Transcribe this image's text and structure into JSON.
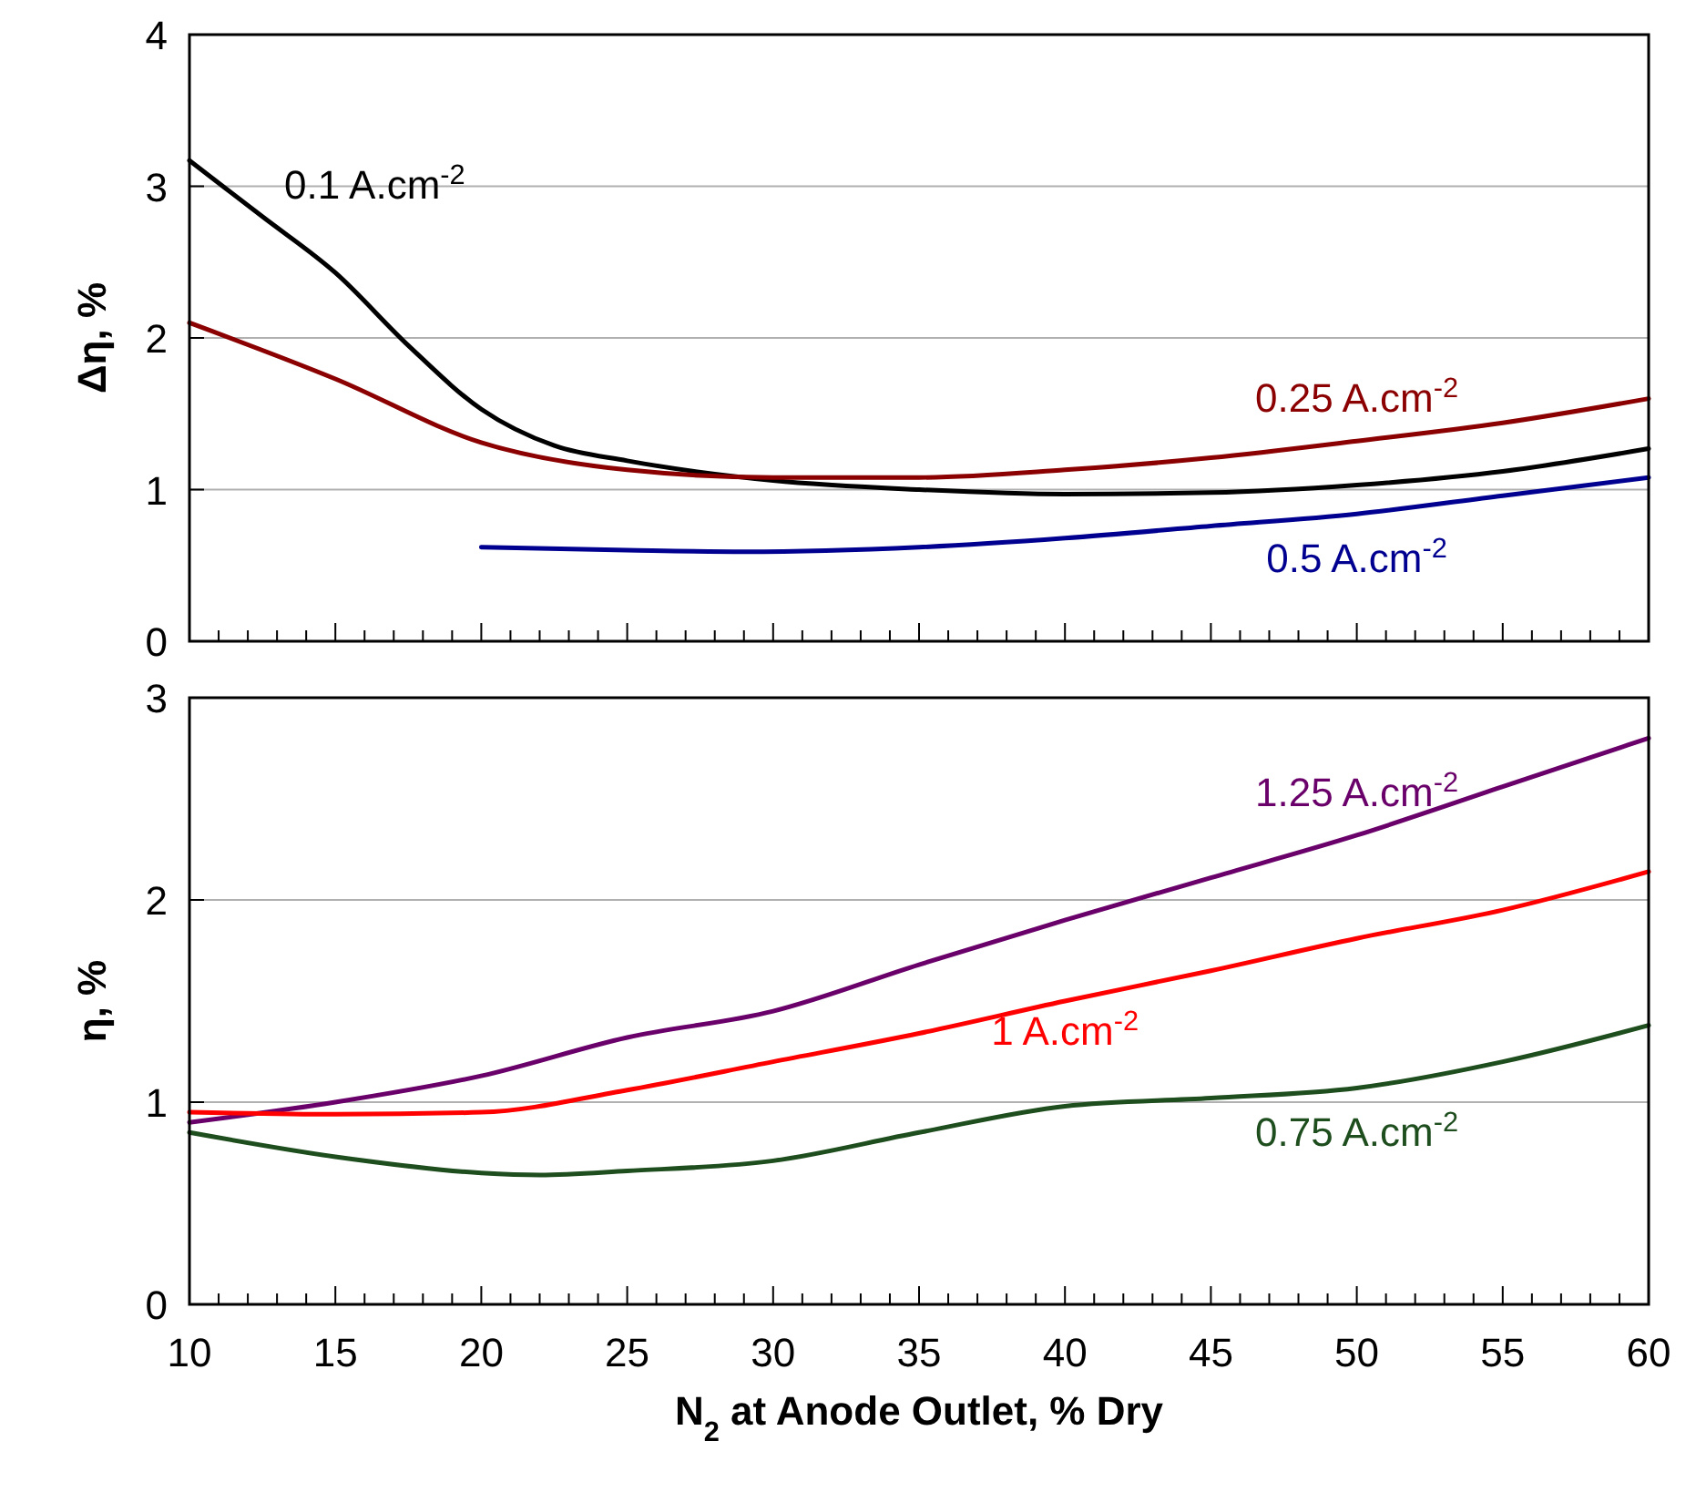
{
  "chart_data": [
    {
      "type": "line",
      "ylabel": "Δη, %",
      "xlim": [
        10,
        60
      ],
      "ylim": [
        0,
        4
      ],
      "yticks": [
        0,
        1,
        2,
        3,
        4
      ],
      "xticks": [
        {
          "value": 10,
          "label": null
        },
        {
          "value": 11,
          "label": null
        },
        {
          "value": 12,
          "label": null
        },
        {
          "value": 13,
          "label": null
        },
        {
          "value": 14,
          "label": null
        },
        {
          "value": 15,
          "label": null
        },
        {
          "value": 16,
          "label": null
        },
        {
          "value": 17,
          "label": null
        },
        {
          "value": 18,
          "label": null
        },
        {
          "value": 19,
          "label": null
        },
        {
          "value": 20,
          "label": null
        },
        {
          "value": 21,
          "label": null
        },
        {
          "value": 22,
          "label": null
        },
        {
          "value": 23,
          "label": null
        },
        {
          "value": 24,
          "label": null
        },
        {
          "value": 25,
          "label": null
        },
        {
          "value": 26,
          "label": null
        },
        {
          "value": 27,
          "label": null
        },
        {
          "value": 28,
          "label": null
        },
        {
          "value": 29,
          "label": null
        },
        {
          "value": 30,
          "label": null
        },
        {
          "value": 31,
          "label": null
        },
        {
          "value": 32,
          "label": null
        },
        {
          "value": 33,
          "label": null
        },
        {
          "value": 34,
          "label": null
        },
        {
          "value": 35,
          "label": null
        },
        {
          "value": 36,
          "label": null
        },
        {
          "value": 37,
          "label": null
        },
        {
          "value": 38,
          "label": null
        },
        {
          "value": 39,
          "label": null
        },
        {
          "value": 40,
          "label": null
        },
        {
          "value": 41,
          "label": null
        },
        {
          "value": 42,
          "label": null
        },
        {
          "value": 43,
          "label": null
        },
        {
          "value": 44,
          "label": null
        },
        {
          "value": 45,
          "label": null
        },
        {
          "value": 46,
          "label": null
        },
        {
          "value": 47,
          "label": null
        },
        {
          "value": 48,
          "label": null
        },
        {
          "value": 49,
          "label": null
        },
        {
          "value": 50,
          "label": null
        },
        {
          "value": 51,
          "label": null
        },
        {
          "value": 52,
          "label": null
        },
        {
          "value": 53,
          "label": null
        },
        {
          "value": 54,
          "label": null
        },
        {
          "value": 55,
          "label": null
        },
        {
          "value": 56,
          "label": null
        },
        {
          "value": 57,
          "label": null
        },
        {
          "value": 58,
          "label": null
        },
        {
          "value": 59,
          "label": null
        },
        {
          "value": 60,
          "label": null
        }
      ],
      "grid": "y",
      "tick_labels": "y",
      "marker": "none",
      "line_style": "solid",
      "series": [
        {
          "name": "0.1 A.cm$^{-2}$",
          "color": "#000000",
          "x": [
            10,
            12.5,
            15,
            17.5,
            20,
            22.5,
            25,
            30,
            35,
            40,
            45,
            50,
            55,
            60
          ],
          "values": [
            3.17,
            2.8,
            2.43,
            1.95,
            1.53,
            1.29,
            1.19,
            1.06,
            1.0,
            0.97,
            0.98,
            1.03,
            1.12,
            1.27
          ]
        },
        {
          "name": "0.25 A.cm$^{-2}$",
          "color": "#8b0000",
          "x": [
            10,
            15,
            20,
            25,
            30,
            35,
            40,
            45,
            50,
            55,
            60
          ],
          "values": [
            2.1,
            1.73,
            1.31,
            1.13,
            1.08,
            1.08,
            1.13,
            1.21,
            1.32,
            1.44,
            1.6
          ]
        },
        {
          "name": "0.5 A.cm$^{-2}$",
          "color": "#000090",
          "x": [
            20,
            25,
            29,
            35,
            40,
            45,
            50,
            55,
            60
          ],
          "values": [
            0.62,
            0.6,
            0.59,
            0.62,
            0.68,
            0.76,
            0.84,
            0.96,
            1.08
          ]
        }
      ]
    },
    {
      "type": "line",
      "ylabel": "η, %",
      "xlabel": "N$_{2}$ at Anode Outlet, % Dry",
      "xlim": [
        10,
        60
      ],
      "ylim": [
        0,
        3
      ],
      "yticks": [
        0,
        1,
        2,
        3
      ],
      "xticks": [
        10,
        {
          "value": 11,
          "label": null
        },
        {
          "value": 12,
          "label": null
        },
        {
          "value": 13,
          "label": null
        },
        {
          "value": 14,
          "label": null
        },
        15,
        {
          "value": 16,
          "label": null
        },
        {
          "value": 17,
          "label": null
        },
        {
          "value": 18,
          "label": null
        },
        {
          "value": 19,
          "label": null
        },
        20,
        {
          "value": 21,
          "label": null
        },
        {
          "value": 22,
          "label": null
        },
        {
          "value": 23,
          "label": null
        },
        {
          "value": 24,
          "label": null
        },
        25,
        {
          "value": 26,
          "label": null
        },
        {
          "value": 27,
          "label": null
        },
        {
          "value": 28,
          "label": null
        },
        {
          "value": 29,
          "label": null
        },
        30,
        {
          "value": 31,
          "label": null
        },
        {
          "value": 32,
          "label": null
        },
        {
          "value": 33,
          "label": null
        },
        {
          "value": 34,
          "label": null
        },
        35,
        {
          "value": 36,
          "label": null
        },
        {
          "value": 37,
          "label": null
        },
        {
          "value": 38,
          "label": null
        },
        {
          "value": 39,
          "label": null
        },
        40,
        {
          "value": 41,
          "label": null
        },
        {
          "value": 42,
          "label": null
        },
        {
          "value": 43,
          "label": null
        },
        {
          "value": 44,
          "label": null
        },
        45,
        {
          "value": 46,
          "label": null
        },
        {
          "value": 47,
          "label": null
        },
        {
          "value": 48,
          "label": null
        },
        {
          "value": 49,
          "label": null
        },
        50,
        {
          "value": 51,
          "label": null
        },
        {
          "value": 52,
          "label": null
        },
        {
          "value": 53,
          "label": null
        },
        {
          "value": 54,
          "label": null
        },
        55,
        {
          "value": 56,
          "label": null
        },
        {
          "value": 57,
          "label": null
        },
        {
          "value": 58,
          "label": null
        },
        {
          "value": 59,
          "label": null
        },
        60
      ],
      "grid": "y",
      "marker": "none",
      "line_style": "solid",
      "series": [
        {
          "name": "1.25 A.cm$^{-2}$",
          "color": "#6a006a",
          "x": [
            10,
            15,
            20,
            25,
            30,
            35,
            40,
            45,
            50,
            55,
            60
          ],
          "values": [
            0.9,
            1.0,
            1.13,
            1.32,
            1.45,
            1.68,
            1.9,
            2.11,
            2.32,
            2.56,
            2.8
          ]
        },
        {
          "name": "1 A.cm$^{-2}$",
          "color": "#ff0000",
          "x": [
            10,
            15,
            20,
            25,
            30,
            35,
            40,
            45,
            50,
            55,
            60
          ],
          "values": [
            0.95,
            0.94,
            0.95,
            1.06,
            1.2,
            1.34,
            1.5,
            1.65,
            1.81,
            1.95,
            2.14
          ]
        },
        {
          "name": "0.75 A.cm$^{-2}$",
          "color": "#1e4d1e",
          "x": [
            10,
            15,
            20,
            22,
            25,
            30,
            35,
            40,
            45,
            50,
            55,
            60
          ],
          "values": [
            0.85,
            0.73,
            0.65,
            0.64,
            0.66,
            0.71,
            0.85,
            0.98,
            1.02,
            1.07,
            1.2,
            1.38
          ]
        }
      ]
    }
  ]
}
